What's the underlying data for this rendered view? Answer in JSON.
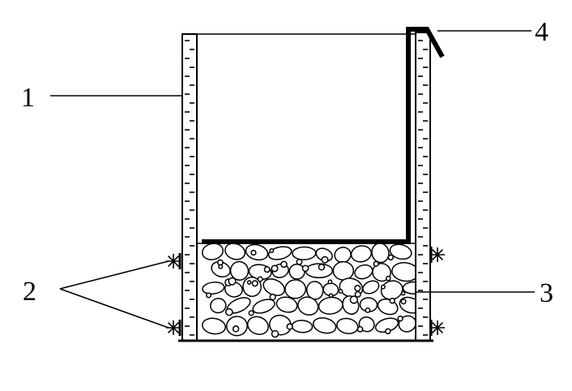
{
  "diagram": {
    "callouts": [
      {
        "id": "1",
        "label": "1"
      },
      {
        "id": "2",
        "label": "2"
      },
      {
        "id": "3",
        "label": "3"
      },
      {
        "id": "4",
        "label": "4"
      }
    ],
    "colors": {
      "line": "#000000",
      "background": "#ffffff"
    }
  }
}
